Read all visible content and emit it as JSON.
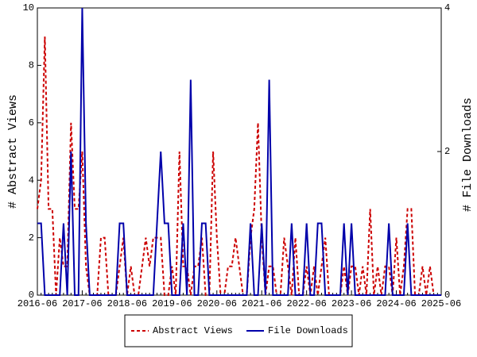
{
  "chart_data": {
    "type": "line",
    "ylabel": "# Abstract Views",
    "y2label": "# File Downloads",
    "categories": [
      "2016-06",
      null,
      null,
      null,
      null,
      null,
      null,
      null,
      null,
      null,
      null,
      null,
      "2017-06",
      null,
      null,
      null,
      null,
      null,
      null,
      null,
      null,
      null,
      null,
      null,
      "2018-06",
      null,
      null,
      null,
      null,
      null,
      null,
      null,
      null,
      null,
      null,
      null,
      "2019-06",
      null,
      null,
      null,
      null,
      null,
      null,
      null,
      null,
      null,
      null,
      null,
      "2020-06",
      null,
      null,
      null,
      null,
      null,
      null,
      null,
      null,
      null,
      null,
      null,
      "2021-06",
      null,
      null,
      null,
      null,
      null,
      null,
      null,
      null,
      null,
      null,
      null,
      "2022-06",
      null,
      null,
      null,
      null,
      null,
      null,
      null,
      null,
      null,
      null,
      null,
      "2023-06",
      null,
      null,
      null,
      null,
      null,
      null,
      null,
      null,
      null,
      null,
      null,
      "2024-06",
      null,
      null,
      null,
      null,
      null,
      null,
      null,
      null,
      null,
      null,
      null,
      "2025-06"
    ],
    "series": [
      {
        "name": "Abstract Views",
        "color": "#cc0000",
        "dash": true,
        "values": [
          3,
          4,
          9,
          3,
          3,
          0,
          2,
          1,
          1,
          6,
          3,
          3,
          5,
          1,
          0,
          0,
          0,
          2,
          2,
          0,
          0,
          0,
          1,
          2,
          0,
          1,
          0,
          0,
          1,
          2,
          1,
          2,
          2,
          2,
          0,
          0,
          1,
          0,
          5,
          1,
          1,
          0,
          1,
          1,
          2,
          0,
          0,
          5,
          2,
          0,
          0,
          1,
          1,
          2,
          1,
          0,
          0,
          2,
          3,
          6,
          2,
          0,
          1,
          1,
          0,
          0,
          2,
          1,
          0,
          2,
          0,
          0,
          1,
          0,
          1,
          0,
          1,
          2,
          0,
          0,
          0,
          0,
          1,
          0,
          1,
          1,
          0,
          1,
          0,
          3,
          0,
          1,
          0,
          1,
          1,
          0,
          2,
          0,
          1,
          3,
          3,
          0,
          0,
          1,
          0,
          1,
          0,
          0,
          0
        ]
      },
      {
        "name": "File Downloads",
        "color": "#0000aa",
        "axis": "y2",
        "values": [
          1,
          1,
          0,
          0,
          0,
          0,
          0,
          1,
          0,
          2,
          0,
          0,
          4,
          1,
          0,
          0,
          0,
          0,
          0,
          0,
          0,
          0,
          1,
          1,
          0,
          0,
          0,
          0,
          0,
          0,
          0,
          0,
          1,
          2,
          1,
          1,
          0,
          0,
          0,
          1,
          0,
          3,
          0,
          0,
          1,
          1,
          0,
          0,
          0,
          0,
          0,
          0,
          0,
          0,
          0,
          0,
          0,
          1,
          0,
          0,
          1,
          0,
          3,
          0,
          0,
          0,
          0,
          0,
          1,
          0,
          0,
          0,
          1,
          0,
          0,
          1,
          1,
          0,
          0,
          0,
          0,
          0,
          1,
          0,
          1,
          0,
          0,
          0,
          0,
          0,
          0,
          0,
          0,
          0,
          1,
          0,
          0,
          0,
          0,
          1,
          0,
          0,
          0,
          0,
          0,
          0,
          0,
          0,
          0
        ]
      }
    ],
    "ylim": [
      0,
      10
    ],
    "yticks": [
      0,
      2,
      4,
      6,
      8,
      10
    ],
    "y2lim": [
      0,
      4
    ],
    "y2ticks": [
      0,
      2,
      4
    ],
    "legend": "bottom"
  }
}
